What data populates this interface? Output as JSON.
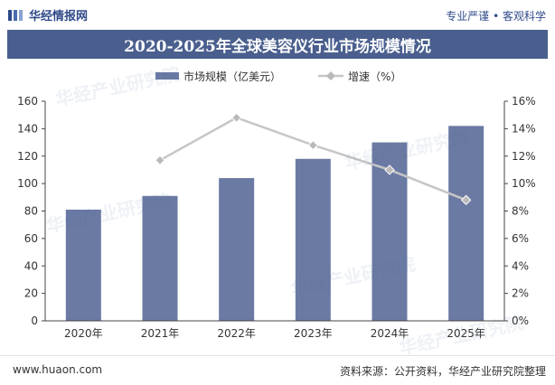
{
  "header": {
    "brand": "华经情报网",
    "slogan": "专业严谨 • 客观科学"
  },
  "title": "2020-2025年全球美容仪行业市场规模情况",
  "footer": {
    "website": "www.huaon.com",
    "source": "资料来源：公开资料，华经产业研究院整理"
  },
  "watermark_text": "华经产业研究院",
  "colors": {
    "bar": "#6b7aa3",
    "line": "#c6c6c6",
    "marker": "#b9b9b9",
    "title_bg": "#4a5f8e",
    "brand": "#2f4a8a"
  },
  "chart_data": {
    "type": "bar",
    "categories": [
      "2020年",
      "2021年",
      "2022年",
      "2023年",
      "2024年",
      "2025年"
    ],
    "series": [
      {
        "name": "市场规模（亿美元）",
        "type": "bar",
        "axis": "left",
        "values": [
          81,
          91,
          104,
          118,
          130,
          142
        ]
      },
      {
        "name": "增速（%）",
        "type": "line",
        "axis": "right",
        "values": [
          null,
          11.7,
          14.8,
          12.8,
          11.0,
          8.8
        ]
      }
    ],
    "y_left": {
      "min": 0,
      "max": 160,
      "ticks": [
        0,
        20,
        40,
        60,
        80,
        100,
        120,
        140,
        160
      ]
    },
    "y_right": {
      "min": 0,
      "max": 16,
      "ticks": [
        "0%",
        "2%",
        "4%",
        "6%",
        "8%",
        "10%",
        "12%",
        "14%",
        "16%"
      ]
    },
    "legend_position": "top",
    "grid": false
  }
}
